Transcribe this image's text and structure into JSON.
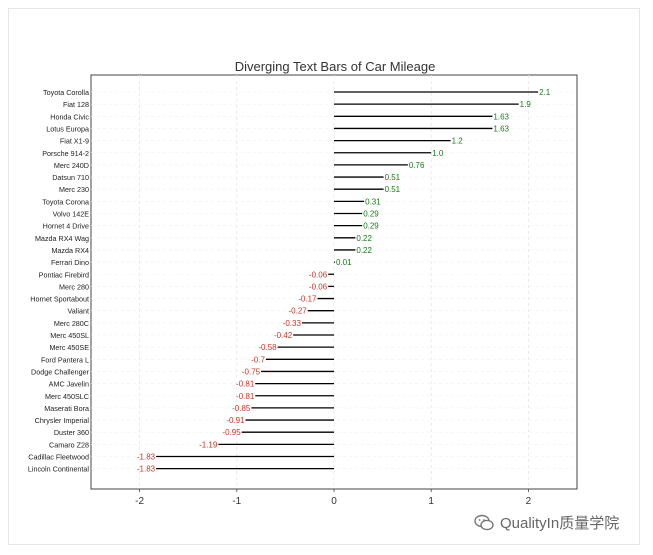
{
  "chart_data": {
    "type": "bar",
    "orientation": "horizontal",
    "title": "Diverging Text Bars of Car Mileage",
    "xlabel": "",
    "ylabel": "",
    "xlim": [
      -2.5,
      2.5
    ],
    "xticks": [
      -2,
      -1,
      0,
      1,
      2
    ],
    "xtick_labels": [
      "-2",
      "-1",
      "0",
      "1",
      "2"
    ],
    "grid": true,
    "positive_color": "#1a7a1a",
    "negative_color": "#c0392b",
    "bar_color": "#000000",
    "categories": [
      "Toyota Corolla",
      "Fiat 128",
      "Honda Civic",
      "Lotus Europa",
      "Fiat X1-9",
      "Porsche 914-2",
      "Merc 240D",
      "Datsun 710",
      "Merc 230",
      "Toyota Corona",
      "Volvo 142E",
      "Hornet 4 Drive",
      "Mazda RX4 Wag",
      "Mazda RX4",
      "Ferrari Dino",
      "Pontiac Firebird",
      "Merc 280",
      "Hornet Sportabout",
      "Valiant",
      "Merc 280C",
      "Merc 450SL",
      "Merc 450SE",
      "Ford Pantera L",
      "Dodge Challenger",
      "AMC Javelin",
      "Merc 450SLC",
      "Maserati Bora",
      "Chrysler Imperial",
      "Duster 360",
      "Camaro Z28",
      "Cadillac Fleetwood",
      "Lincoln Continental"
    ],
    "values": [
      2.1,
      1.9,
      1.63,
      1.63,
      1.2,
      1.0,
      0.76,
      0.51,
      0.51,
      0.31,
      0.29,
      0.29,
      0.22,
      0.22,
      0.01,
      -0.06,
      -0.06,
      -0.17,
      -0.27,
      -0.33,
      -0.42,
      -0.58,
      -0.7,
      -0.75,
      -0.81,
      -0.81,
      -0.85,
      -0.91,
      -0.95,
      -1.19,
      -1.83,
      -1.83
    ],
    "value_labels": [
      "2.1",
      "1.9",
      "1.63",
      "1.63",
      "1.2",
      "1.0",
      "0.76",
      "0.51",
      "0.51",
      "0.31",
      "0.29",
      "0.29",
      "0.22",
      "0.22",
      "0.01",
      "-0.06",
      "-0.06",
      "-0.17",
      "-0.27",
      "-0.33",
      "-0.42",
      "-0.58",
      "-0.7",
      "-0.75",
      "-0.81",
      "-0.81",
      "-0.85",
      "-0.91",
      "-0.95",
      "-1.19",
      "-1.83",
      "-1.83"
    ]
  },
  "watermark": {
    "icon": "wechat-icon",
    "text": "QualityIn质量学院"
  }
}
